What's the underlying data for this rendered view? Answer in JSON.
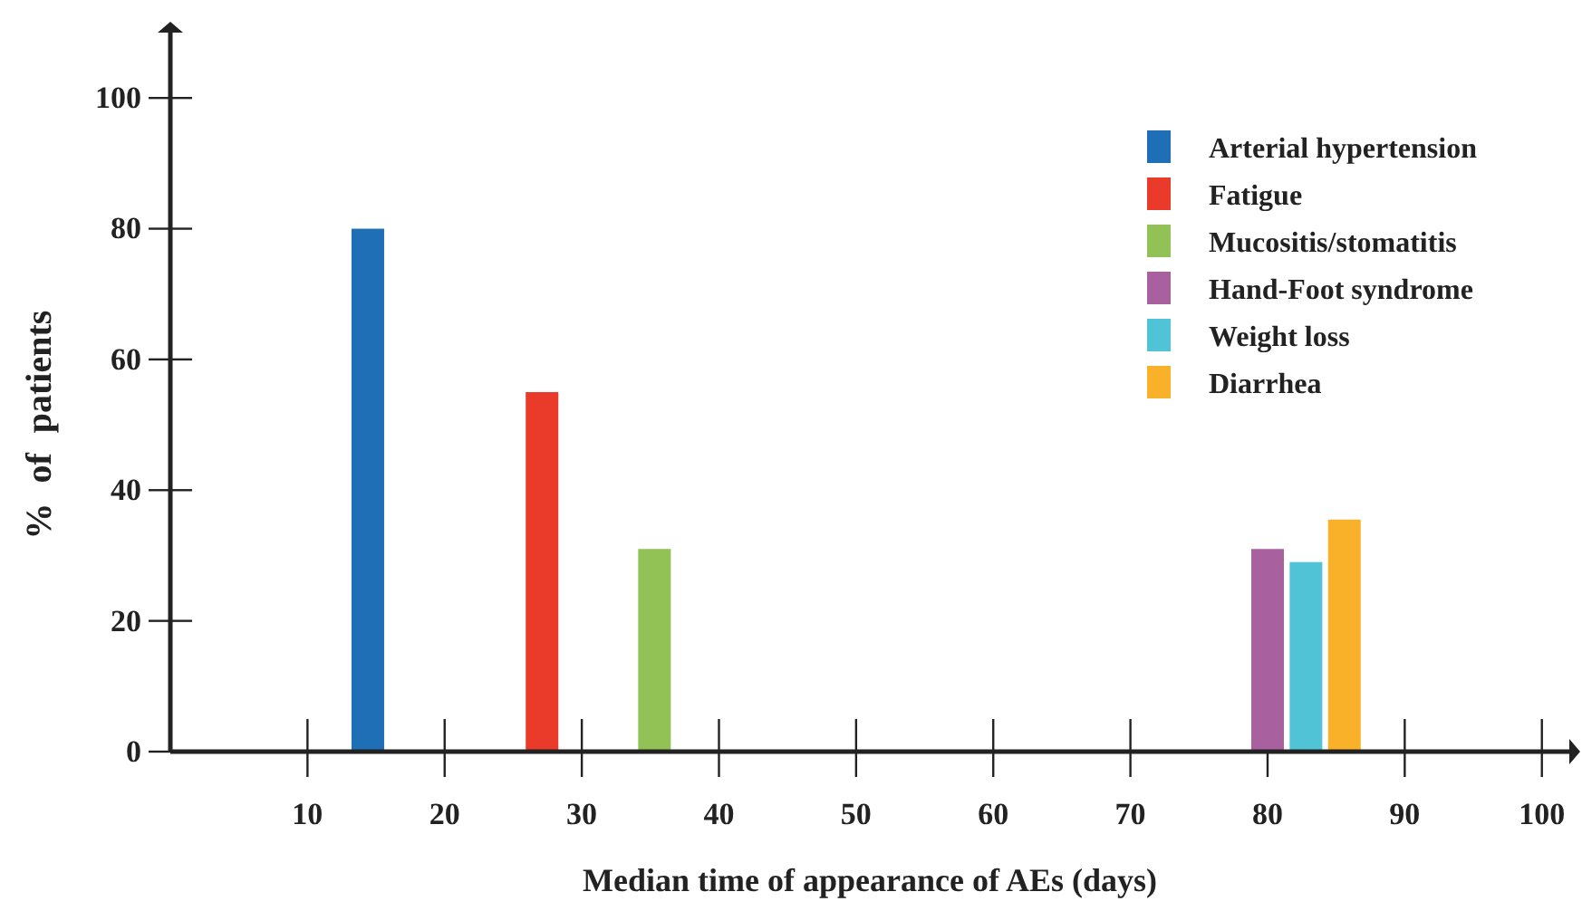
{
  "chart_data": {
    "type": "bar",
    "xlabel": "Median time of appearance of AEs (days)",
    "ylabel": "% of patients",
    "xlim": [
      0,
      102
    ],
    "ylim": [
      0,
      110
    ],
    "xticks": [
      10,
      20,
      30,
      40,
      50,
      60,
      70,
      80,
      90,
      100
    ],
    "yticks": [
      0,
      20,
      40,
      60,
      80,
      100
    ],
    "grid": false,
    "legend": "top right",
    "series": [
      {
        "name": "Arterial hypertension",
        "color": "#1f6fb6",
        "x": [
          14.4
        ],
        "values": [
          80
        ]
      },
      {
        "name": "Fatigue",
        "color": "#ea3a2a",
        "x": [
          27.1
        ],
        "values": [
          55
        ]
      },
      {
        "name": "Mucositis/stomatitis",
        "color": "#92c255",
        "x": [
          35.3
        ],
        "values": [
          31
        ]
      },
      {
        "name": "Hand-Foot syndrome",
        "color": "#a8609f",
        "x": [
          80
        ],
        "values": [
          31
        ]
      },
      {
        "name": "Weight loss",
        "color": "#51c3d6",
        "x": [
          82.8
        ],
        "values": [
          29
        ]
      },
      {
        "name": "Diarrhea",
        "color": "#f8b128",
        "x": [
          85.6
        ],
        "values": [
          35.5
        ]
      }
    ]
  }
}
